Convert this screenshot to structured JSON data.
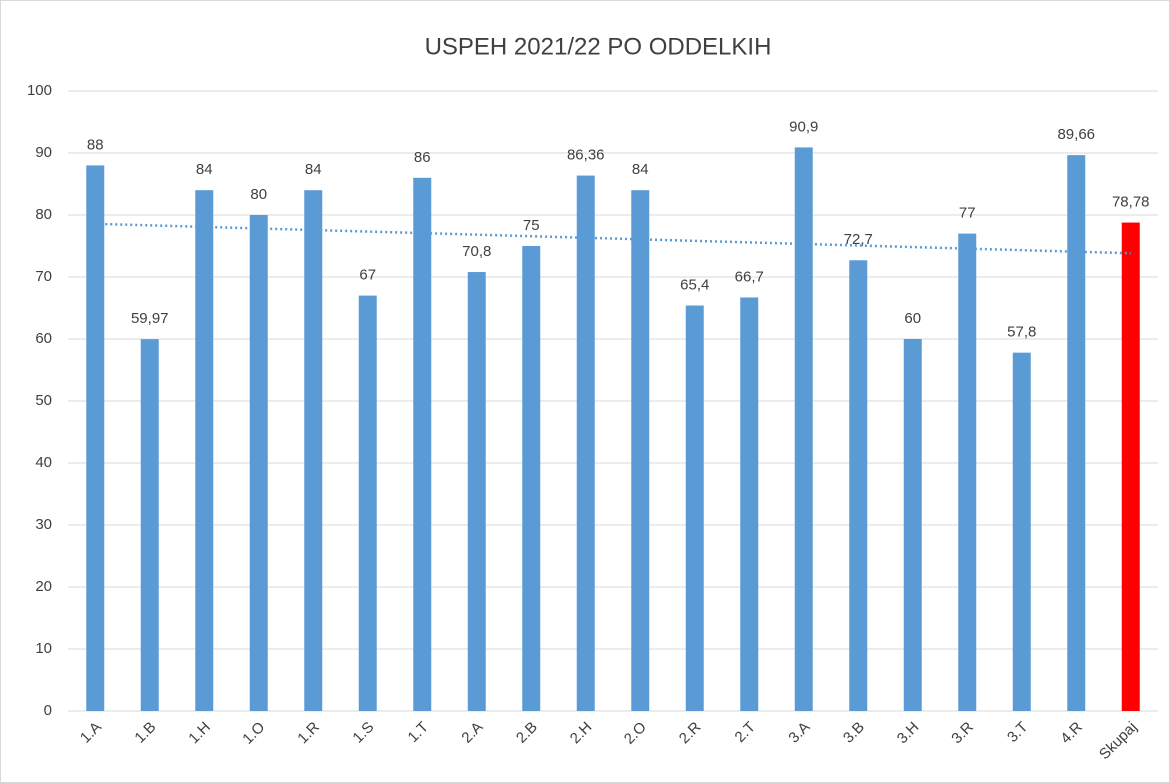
{
  "chart_data": {
    "type": "bar",
    "title": "USPEH 2021/22 PO ODDELKIH",
    "categories": [
      "1.A",
      "1.B",
      "1.H",
      "1.O",
      "1.R",
      "1.S",
      "1.T",
      "2.A",
      "2.B",
      "2.H",
      "2.O",
      "2.R",
      "2.T",
      "3.A",
      "3.B",
      "3.H",
      "3.R",
      "3.T",
      "4.R",
      "Skupaj"
    ],
    "values": [
      88,
      59.97,
      84,
      80,
      84,
      67,
      86,
      70.8,
      75,
      86.36,
      84,
      65.4,
      66.7,
      90.9,
      72.7,
      60,
      77,
      57.8,
      89.66,
      78.78
    ],
    "value_labels": [
      "88",
      "59,97",
      "84",
      "80",
      "84",
      "67",
      "86",
      "70,8",
      "75",
      "86,36",
      "84",
      "65,4",
      "66,7",
      "90,9",
      "72,7",
      "60",
      "77",
      "57,8",
      "89,66",
      "78,78"
    ],
    "colors": [
      "#5b9bd5",
      "#5b9bd5",
      "#5b9bd5",
      "#5b9bd5",
      "#5b9bd5",
      "#5b9bd5",
      "#5b9bd5",
      "#5b9bd5",
      "#5b9bd5",
      "#5b9bd5",
      "#5b9bd5",
      "#5b9bd5",
      "#5b9bd5",
      "#5b9bd5",
      "#5b9bd5",
      "#5b9bd5",
      "#5b9bd5",
      "#5b9bd5",
      "#5b9bd5",
      "#ff0000"
    ],
    "ylim": [
      0,
      100
    ],
    "yticks": [
      0,
      10,
      20,
      30,
      40,
      50,
      60,
      70,
      80,
      90,
      100
    ],
    "grid": true,
    "trendline": "linear"
  }
}
